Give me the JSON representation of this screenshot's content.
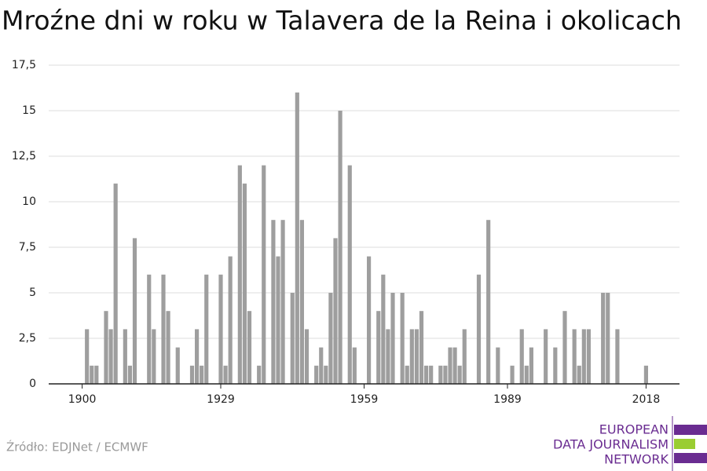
{
  "chart_data": {
    "type": "bar",
    "title": "Mroźne dni w roku w Talavera de la Reina i okolicach",
    "x": [
      1901,
      1902,
      1903,
      1905,
      1906,
      1907,
      1909,
      1910,
      1911,
      1914,
      1915,
      1917,
      1918,
      1920,
      1923,
      1924,
      1925,
      1926,
      1929,
      1930,
      1931,
      1933,
      1934,
      1935,
      1937,
      1938,
      1940,
      1941,
      1942,
      1944,
      1945,
      1946,
      1947,
      1949,
      1950,
      1951,
      1952,
      1953,
      1954,
      1956,
      1957,
      1960,
      1962,
      1963,
      1964,
      1965,
      1967,
      1968,
      1969,
      1970,
      1971,
      1972,
      1973,
      1975,
      1976,
      1977,
      1978,
      1979,
      1980,
      1983,
      1985,
      1987,
      1990,
      1992,
      1993,
      1994,
      1997,
      1999,
      2001,
      2003,
      2004,
      2005,
      2006,
      2009,
      2010,
      2012,
      2018
    ],
    "values": [
      3,
      1,
      1,
      4,
      3,
      11,
      3,
      1,
      8,
      6,
      3,
      6,
      4,
      2,
      1,
      3,
      1,
      6,
      6,
      1,
      7,
      12,
      11,
      4,
      1,
      12,
      9,
      7,
      9,
      5,
      16,
      9,
      3,
      1,
      2,
      1,
      5,
      8,
      15,
      12,
      2,
      7,
      4,
      6,
      3,
      5,
      5,
      1,
      3,
      3,
      4,
      1,
      1,
      1,
      1,
      2,
      2,
      1,
      3,
      6,
      9,
      2,
      1,
      3,
      1,
      2,
      3,
      2,
      4,
      3,
      1,
      3,
      3,
      5,
      5,
      3,
      1
    ],
    "color": "#9e9e9e",
    "xlim": [
      1893,
      2025
    ],
    "xticks": [
      1900,
      1929,
      1959,
      1989,
      2018
    ],
    "ylim": [
      0,
      17.5
    ],
    "yticks": [
      0,
      {
        "value": 2.5,
        "label": "2,5"
      },
      5,
      {
        "value": 7.5,
        "label": "7,5"
      },
      10,
      {
        "value": 12.5,
        "label": "12,5"
      },
      15,
      {
        "value": 17.5,
        "label": "17,5"
      }
    ],
    "grid": true,
    "source": "Źródło: EDJNet / ECMWF"
  },
  "logo": {
    "lines": [
      "EUROPEAN",
      "DATA JOURNALISM",
      "NETWORK"
    ]
  }
}
